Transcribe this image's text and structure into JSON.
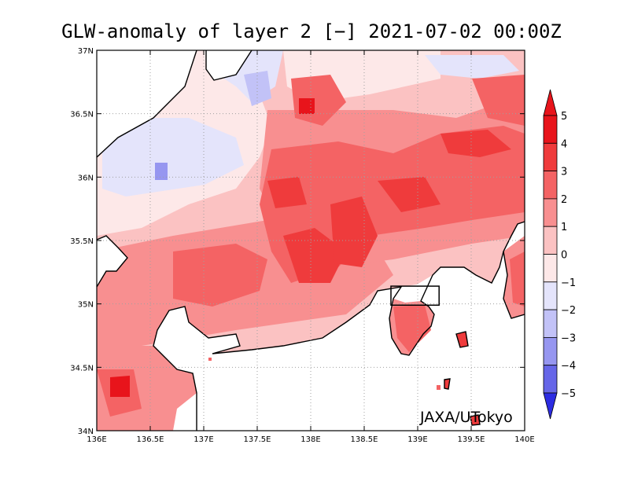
{
  "title": "GLW-anomaly of layer 2 [−] 2021-07-02 00:00Z",
  "credit": "JAXA/UTokyo",
  "map": {
    "lon_range": [
      136,
      140
    ],
    "lat_range": [
      34,
      37
    ],
    "lon_ticks": [
      "136E",
      "136.5E",
      "137E",
      "137.5E",
      "138E",
      "138.5E",
      "139E",
      "139.5E",
      "140E"
    ],
    "lat_ticks": [
      "34N",
      "34.5N",
      "35N",
      "35.5N",
      "36N",
      "36.5N",
      "37N"
    ],
    "gridlines": "dotted",
    "marker_box": {
      "lon": [
        138.75,
        139.2
      ],
      "lat": [
        34.99,
        35.14
      ]
    }
  },
  "colorbar": {
    "labels": [
      "5",
      "4",
      "3",
      "2",
      "1",
      "0",
      "−1",
      "−2",
      "−3",
      "−4",
      "−5"
    ],
    "colors": {
      "c5": "#e8141b",
      "c4": "#ef3b3c",
      "c3": "#f46364",
      "c2": "#f88f90",
      "c1": "#fbc2c2",
      "c0": "#fde8e8",
      "cn1": "#e4e4fb",
      "cn2": "#c2c2f7",
      "cn3": "#9696f0",
      "cn4": "#6666e8",
      "cn5": "#2c2ce2"
    }
  }
}
